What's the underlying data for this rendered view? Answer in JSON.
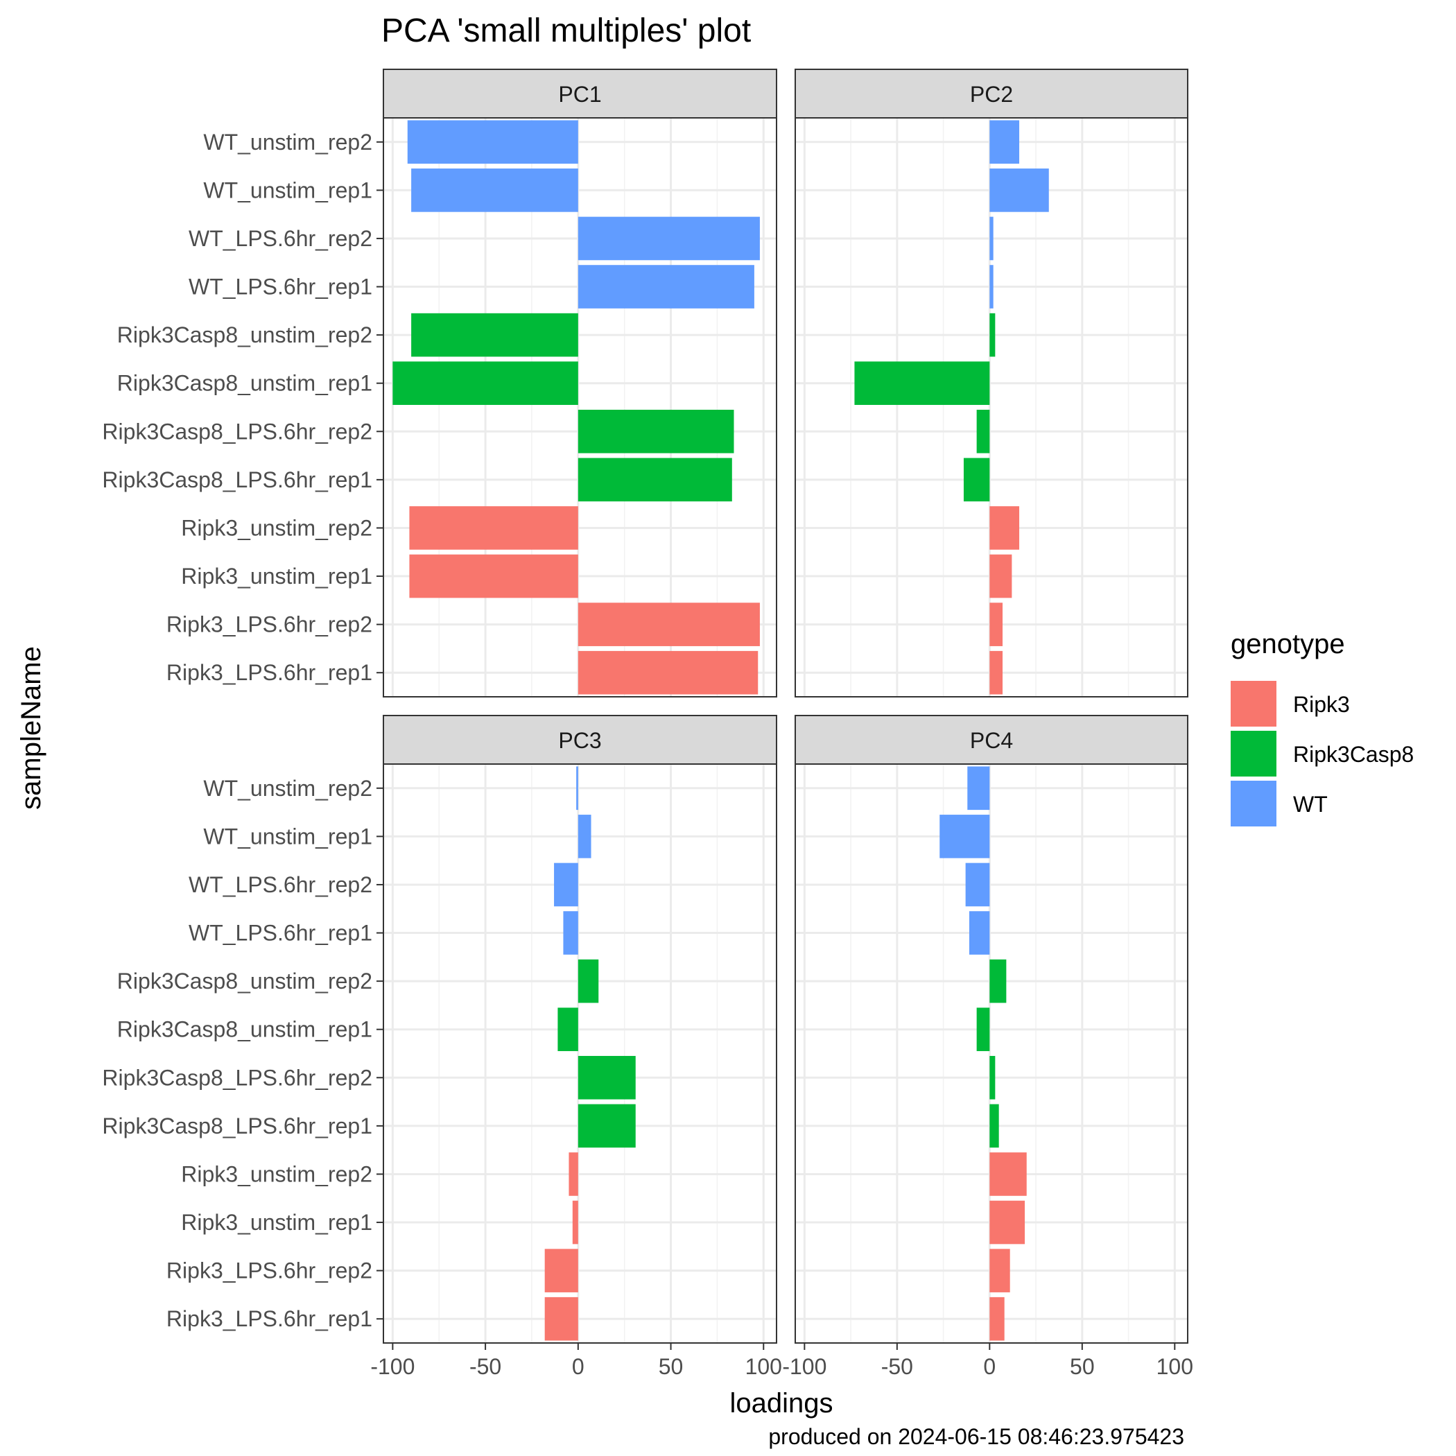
{
  "chart_data": {
    "type": "bar",
    "title": "PCA 'small multiples' plot",
    "caption": "produced on 2024-06-15 08:46:23.975423",
    "xlabel": "loadings",
    "ylabel": "sampleName",
    "xlim": [
      -105,
      107
    ],
    "xticks": [
      -100,
      -50,
      0,
      50,
      100
    ],
    "xtick_labels": [
      "-100",
      "-50",
      "0",
      "50",
      "100"
    ],
    "grid": true,
    "legend": {
      "title": "genotype",
      "position": "right",
      "entries": [
        {
          "label": "Ripk3",
          "color": "#F8766D"
        },
        {
          "label": "Ripk3Casp8",
          "color": "#00BA38"
        },
        {
          "label": "WT",
          "color": "#619CFF"
        }
      ]
    },
    "categories": [
      "WT_unstim_rep2",
      "WT_unstim_rep1",
      "WT_LPS.6hr_rep2",
      "WT_LPS.6hr_rep1",
      "Ripk3Casp8_unstim_rep2",
      "Ripk3Casp8_unstim_rep1",
      "Ripk3Casp8_LPS.6hr_rep2",
      "Ripk3Casp8_LPS.6hr_rep1",
      "Ripk3_unstim_rep2",
      "Ripk3_unstim_rep1",
      "Ripk3_LPS.6hr_rep2",
      "Ripk3_LPS.6hr_rep1"
    ],
    "category_genotype": [
      "WT",
      "WT",
      "WT",
      "WT",
      "Ripk3Casp8",
      "Ripk3Casp8",
      "Ripk3Casp8",
      "Ripk3Casp8",
      "Ripk3",
      "Ripk3",
      "Ripk3",
      "Ripk3"
    ],
    "panels": [
      {
        "name": "PC1",
        "values": [
          -92,
          -90,
          98,
          95,
          -90,
          -100,
          84,
          83,
          -91,
          -91,
          98,
          97
        ]
      },
      {
        "name": "PC2",
        "values": [
          16,
          32,
          2,
          2,
          3,
          -73,
          -7,
          -14,
          16,
          12,
          7,
          7
        ]
      },
      {
        "name": "PC3",
        "values": [
          -1,
          7,
          -13,
          -8,
          11,
          -11,
          31,
          31,
          -5,
          -3,
          -18,
          -18
        ]
      },
      {
        "name": "PC4",
        "values": [
          -12,
          -27,
          -13,
          -11,
          9,
          -7,
          3,
          5,
          20,
          19,
          11,
          8
        ]
      }
    ]
  }
}
